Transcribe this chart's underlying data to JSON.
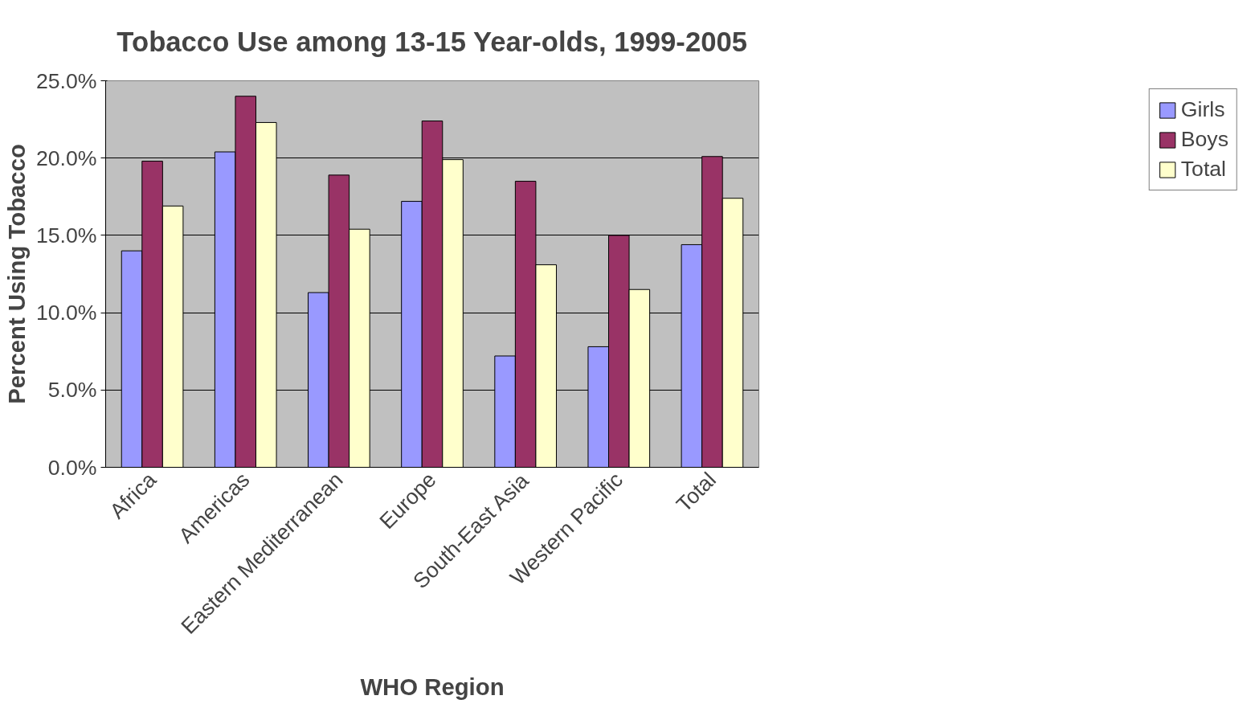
{
  "chart_data": {
    "type": "bar",
    "title": "Tobacco Use among 13-15 Year-olds, 1999-2005",
    "xlabel": "WHO Region",
    "ylabel": "Percent Using Tobacco",
    "categories": [
      "Africa",
      "Americas",
      "Eastern Mediterranean",
      "Europe",
      "South-East Asia",
      "Western Pacific",
      "Total"
    ],
    "series": [
      {
        "name": "Girls",
        "color": "#9999ff",
        "values": [
          14.0,
          20.4,
          11.3,
          17.2,
          7.2,
          7.8,
          14.4
        ]
      },
      {
        "name": "Boys",
        "color": "#993366",
        "values": [
          19.8,
          24.0,
          18.9,
          22.4,
          18.5,
          15.0,
          20.1
        ]
      },
      {
        "name": "Total",
        "color": "#ffffcc",
        "values": [
          16.9,
          22.3,
          15.4,
          19.9,
          13.1,
          11.5,
          17.4
        ]
      }
    ],
    "ylim": [
      0,
      25
    ],
    "yticks": [
      {
        "value": 0,
        "label": "0.0%"
      },
      {
        "value": 5,
        "label": "5.0%"
      },
      {
        "value": 10,
        "label": "10.0%"
      },
      {
        "value": 15,
        "label": "15.0%"
      },
      {
        "value": 20,
        "label": "20.0%"
      },
      {
        "value": 25,
        "label": "25.0%"
      }
    ],
    "grid": "y",
    "legend": "right"
  }
}
